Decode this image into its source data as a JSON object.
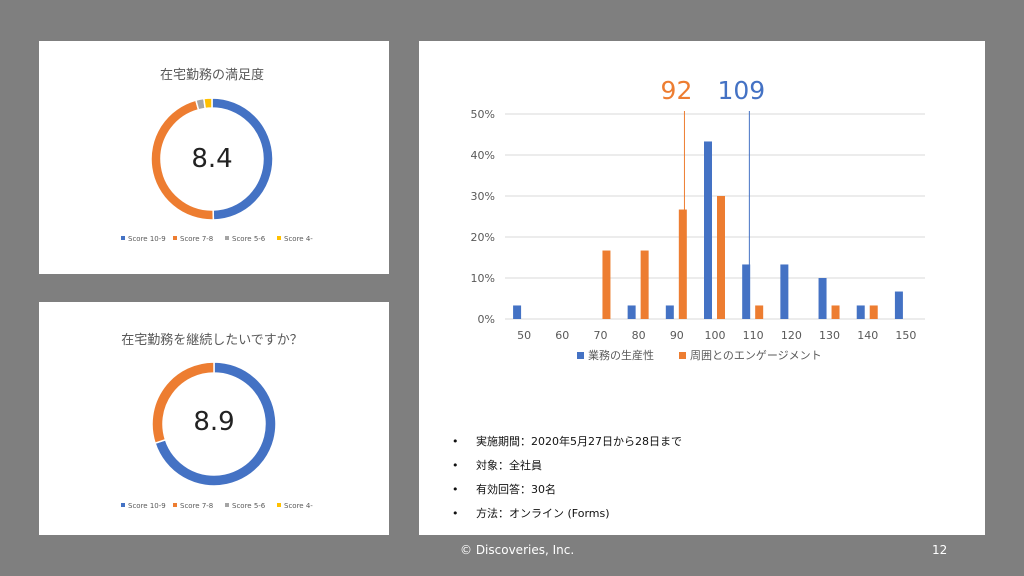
{
  "donut_legend": [
    "Score 10-9",
    "Score 7-8",
    "Score 5-6",
    "Score 4-"
  ],
  "colors": {
    "blue": "#4472c4",
    "orange": "#ed7d31",
    "gray": "#a5a5a5",
    "yellow": "#ffc000"
  },
  "chart_data": [
    {
      "type": "pie",
      "title": "在宅勤務の満足度",
      "center_label": "8.4",
      "categories": [
        "Score 10-9",
        "Score 7-8",
        "Score 5-6",
        "Score 4-"
      ],
      "values": [
        14,
        13,
        0.6,
        0.6
      ]
    },
    {
      "type": "pie",
      "title": "在宅勤務を継続したいですか？",
      "center_label": "8.9",
      "categories": [
        "Score 10-9",
        "Score 7-8",
        "Score 5-6",
        "Score 4-"
      ],
      "values": [
        21,
        9,
        0,
        0
      ]
    },
    {
      "type": "bar",
      "categories": [
        "50",
        "60",
        "70",
        "80",
        "90",
        "100",
        "110",
        "120",
        "130",
        "140",
        "150"
      ],
      "series": [
        {
          "name": "業務の生産性",
          "values": [
            3.3,
            0,
            0,
            3.3,
            3.3,
            43.3,
            13.3,
            13.3,
            10,
            3.3,
            6.7
          ]
        },
        {
          "name": "周囲とのエンゲージメント",
          "values": [
            0,
            0,
            16.7,
            16.7,
            26.7,
            30,
            3.3,
            0,
            3.3,
            3.3,
            0
          ]
        }
      ],
      "ylim": [
        0,
        50
      ],
      "yticks": [
        "0%",
        "10%",
        "20%",
        "30%",
        "40%",
        "50%"
      ],
      "grid": true,
      "legend": "bottom",
      "reference_lines": [
        {
          "label": "92",
          "x": 92,
          "color": "#ed7d31"
        },
        {
          "label": "109",
          "x": 109,
          "color": "#4472c4"
        }
      ]
    }
  ],
  "bullets": [
    "実施期間：2020年5月27日から28日まで",
    "対象：全社員",
    "有効回答：30名",
    "方法：オンライン (Forms)"
  ],
  "footer": {
    "copyright": "© Discoveries, Inc.",
    "page_number": "12"
  }
}
